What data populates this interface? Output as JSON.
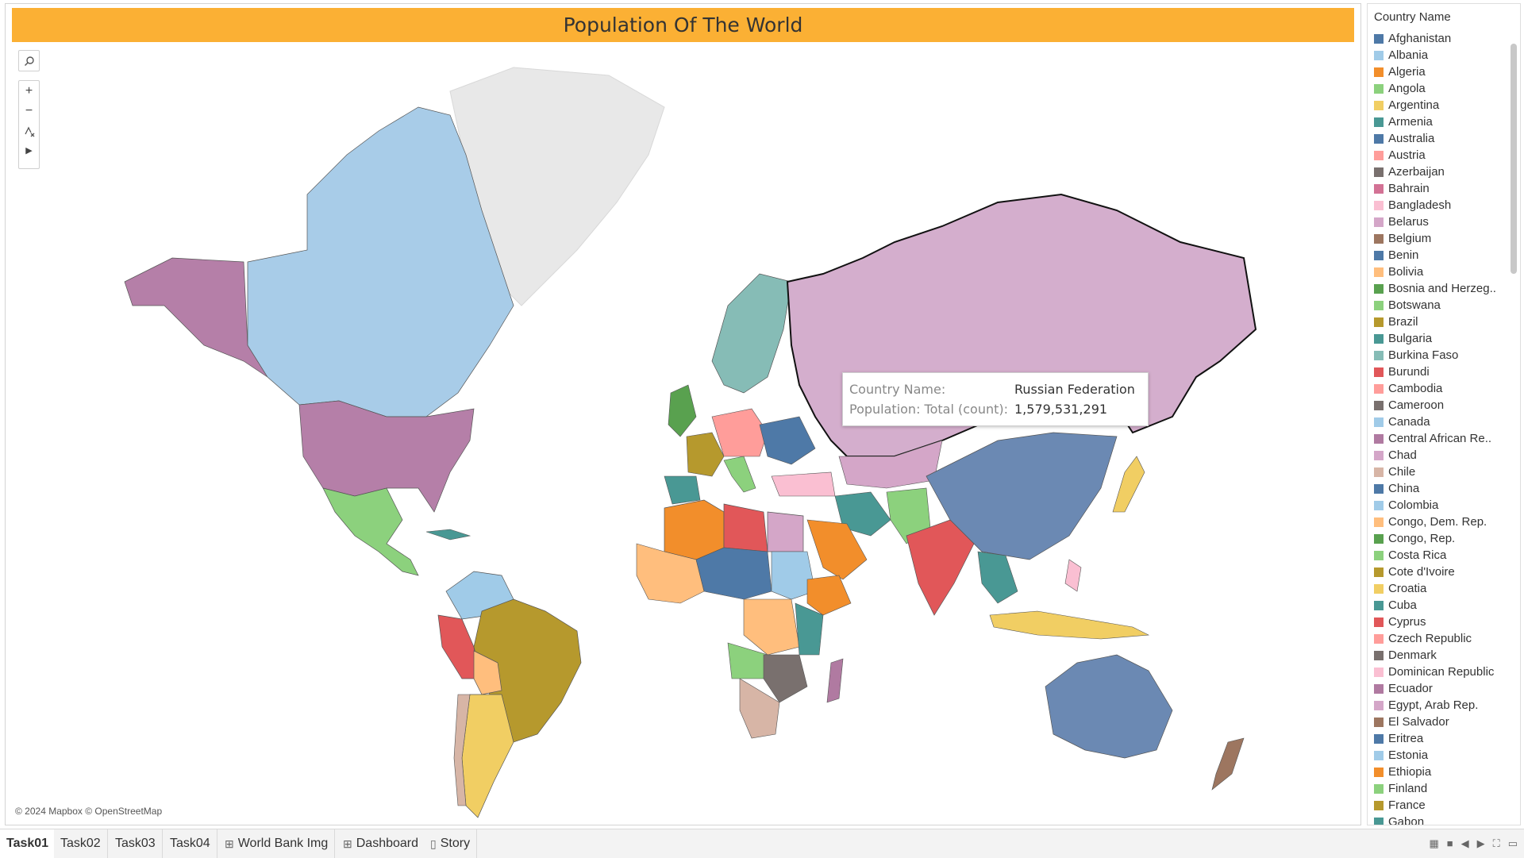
{
  "title": "Population Of The World",
  "toolbar": {
    "search_icon": "search-icon",
    "zoom_in": "+",
    "zoom_out": "−",
    "reset_icon": "reset-map-icon",
    "expand_icon": "▶"
  },
  "attribution": "© 2024 Mapbox © OpenStreetMap",
  "tooltip": {
    "country_label": "Country Name:",
    "country_value": "Russian Federation",
    "population_label": "Population: Total (count):",
    "population_value": "1,579,531,291"
  },
  "legend": {
    "title": "Country Name",
    "items": [
      {
        "name": "Afghanistan",
        "color": "#4e79a7"
      },
      {
        "name": "Albania",
        "color": "#a0cbe8"
      },
      {
        "name": "Algeria",
        "color": "#f28e2b"
      },
      {
        "name": "Angola",
        "color": "#8cd17d"
      },
      {
        "name": "Argentina",
        "color": "#f1ce63"
      },
      {
        "name": "Armenia",
        "color": "#499894"
      },
      {
        "name": "Australia",
        "color": "#4e79a7"
      },
      {
        "name": "Austria",
        "color": "#ff9d9a"
      },
      {
        "name": "Azerbaijan",
        "color": "#79706e"
      },
      {
        "name": "Bahrain",
        "color": "#d37295"
      },
      {
        "name": "Bangladesh",
        "color": "#fabfd2"
      },
      {
        "name": "Belarus",
        "color": "#d4a6c8"
      },
      {
        "name": "Belgium",
        "color": "#9d7660"
      },
      {
        "name": "Benin",
        "color": "#4e79a7"
      },
      {
        "name": "Bolivia",
        "color": "#ffbe7d"
      },
      {
        "name": "Bosnia and Herzeg..",
        "color": "#59a14f"
      },
      {
        "name": "Botswana",
        "color": "#8cd17d"
      },
      {
        "name": "Brazil",
        "color": "#b6992d"
      },
      {
        "name": "Bulgaria",
        "color": "#499894"
      },
      {
        "name": "Burkina Faso",
        "color": "#86bcb6"
      },
      {
        "name": "Burundi",
        "color": "#e15759"
      },
      {
        "name": "Cambodia",
        "color": "#ff9d9a"
      },
      {
        "name": "Cameroon",
        "color": "#79706e"
      },
      {
        "name": "Canada",
        "color": "#a0cbe8"
      },
      {
        "name": "Central African Re..",
        "color": "#b07aa1"
      },
      {
        "name": "Chad",
        "color": "#d4a6c8"
      },
      {
        "name": "Chile",
        "color": "#d7b5a6"
      },
      {
        "name": "China",
        "color": "#4e79a7"
      },
      {
        "name": "Colombia",
        "color": "#a0cbe8"
      },
      {
        "name": "Congo, Dem. Rep.",
        "color": "#ffbe7d"
      },
      {
        "name": "Congo, Rep.",
        "color": "#59a14f"
      },
      {
        "name": "Costa Rica",
        "color": "#8cd17d"
      },
      {
        "name": "Cote d'Ivoire",
        "color": "#b6992d"
      },
      {
        "name": "Croatia",
        "color": "#f1ce63"
      },
      {
        "name": "Cuba",
        "color": "#499894"
      },
      {
        "name": "Cyprus",
        "color": "#e15759"
      },
      {
        "name": "Czech Republic",
        "color": "#ff9d9a"
      },
      {
        "name": "Denmark",
        "color": "#79706e"
      },
      {
        "name": "Dominican Republic",
        "color": "#fabfd2"
      },
      {
        "name": "Ecuador",
        "color": "#b07aa1"
      },
      {
        "name": "Egypt, Arab Rep.",
        "color": "#d4a6c8"
      },
      {
        "name": "El Salvador",
        "color": "#9d7660"
      },
      {
        "name": "Eritrea",
        "color": "#4e79a7"
      },
      {
        "name": "Estonia",
        "color": "#a0cbe8"
      },
      {
        "name": "Ethiopia",
        "color": "#f28e2b"
      },
      {
        "name": "Finland",
        "color": "#8cd17d"
      },
      {
        "name": "France",
        "color": "#b6992d"
      },
      {
        "name": "Gabon",
        "color": "#499894"
      }
    ]
  },
  "tabs": [
    {
      "label": "Task01",
      "icon": "",
      "active": true
    },
    {
      "label": "Task02",
      "icon": "",
      "active": false
    },
    {
      "label": "Task03",
      "icon": "",
      "active": false
    },
    {
      "label": "Task04",
      "icon": "",
      "active": false
    },
    {
      "label": "World Bank Img",
      "icon": "⊞",
      "active": false
    },
    {
      "label": "Dashboard",
      "icon": "⊞",
      "active": false
    },
    {
      "label": "Story",
      "icon": "▯",
      "active": false
    }
  ],
  "colors": {
    "title_bar": "#fbb034",
    "greenland": "#e8e8e8"
  }
}
